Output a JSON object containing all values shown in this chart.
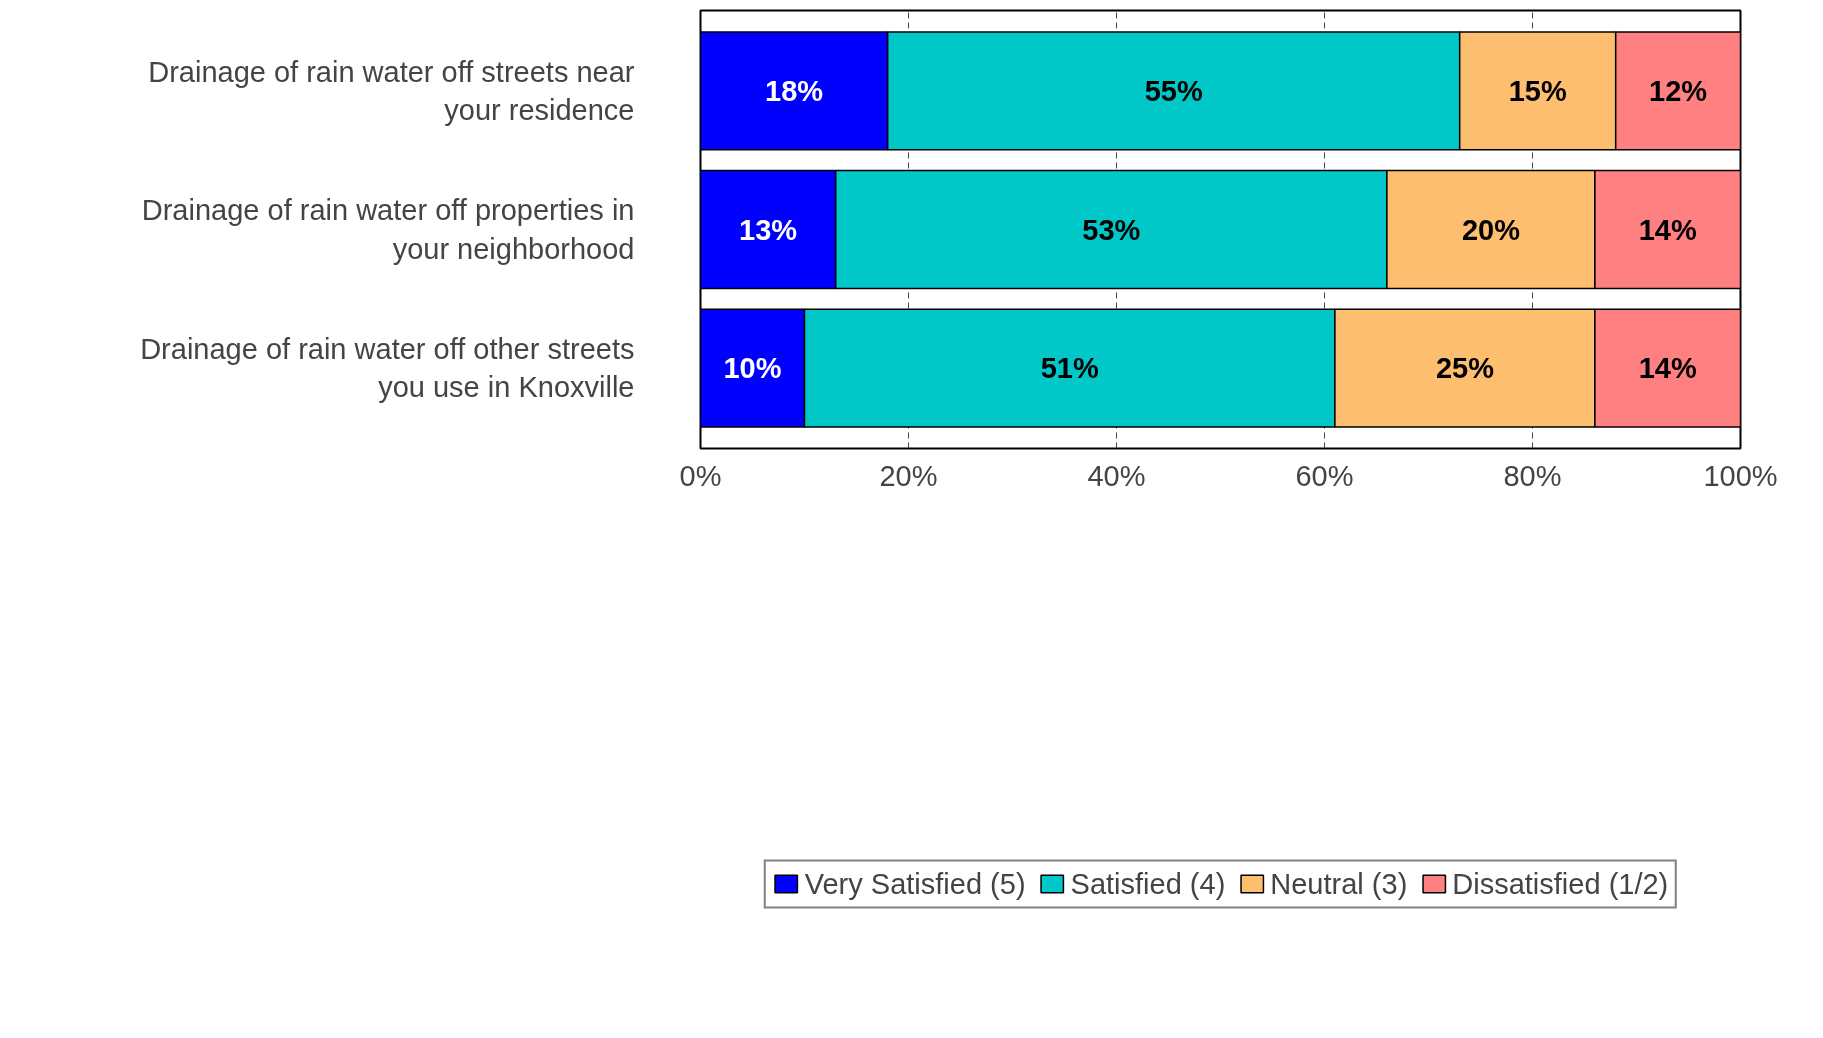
{
  "chart_data": {
    "type": "bar",
    "orientation": "horizontal",
    "stacked": true,
    "categories": [
      "Drainage of rain water off streets near your residence",
      "Drainage of rain water off properties in your neighborhood",
      "Drainage of rain water off other streets you use in Knoxville"
    ],
    "series": [
      {
        "name": "Very Satisfied (5)",
        "color": "#0000ff",
        "values": [
          18,
          13,
          10
        ],
        "value_labels": [
          "18%",
          "13%",
          "10%"
        ]
      },
      {
        "name": "Satisfied (4)",
        "color": "#00c8c8",
        "values": [
          55,
          53,
          51
        ],
        "value_labels": [
          "55%",
          "53%",
          "51%"
        ]
      },
      {
        "name": "Neutral (3)",
        "color": "#fdbf6f",
        "values": [
          15,
          20,
          25
        ],
        "value_labels": [
          "15%",
          "20%",
          "25%"
        ]
      },
      {
        "name": "Dissatisfied (1/2)",
        "color": "#ff8080",
        "values": [
          12,
          14,
          14
        ],
        "value_labels": [
          "12%",
          "14%",
          "14%"
        ]
      }
    ],
    "xlim": [
      0,
      100
    ],
    "xticks": [
      {
        "value": 0,
        "label": "0%"
      },
      {
        "value": 20,
        "label": "20%"
      },
      {
        "value": 40,
        "label": "40%"
      },
      {
        "value": 60,
        "label": "60%"
      },
      {
        "value": 80,
        "label": "80%"
      },
      {
        "value": 100,
        "label": "100%"
      }
    ],
    "grid": "x",
    "legend": "bottom"
  }
}
